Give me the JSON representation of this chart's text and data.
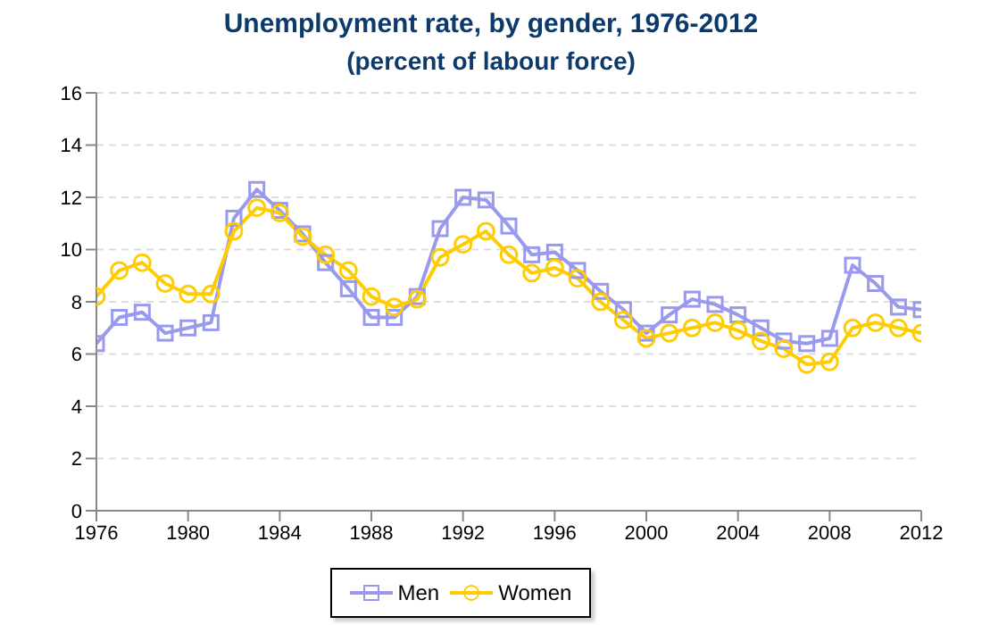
{
  "chart_data": {
    "type": "line",
    "title": "Unemployment rate, by gender, 1976-2012",
    "subtitle": "(percent of labour force)",
    "x": [
      1976,
      1977,
      1978,
      1979,
      1980,
      1981,
      1982,
      1983,
      1984,
      1985,
      1986,
      1987,
      1988,
      1989,
      1990,
      1991,
      1992,
      1993,
      1994,
      1995,
      1996,
      1997,
      1998,
      1999,
      2000,
      2001,
      2002,
      2003,
      2004,
      2005,
      2006,
      2007,
      2008,
      2009,
      2010,
      2011,
      2012
    ],
    "series": [
      {
        "name": "Men",
        "color": "#9999ee",
        "marker": "square",
        "values": [
          6.4,
          7.4,
          7.6,
          6.8,
          7.0,
          7.2,
          11.2,
          12.3,
          11.5,
          10.6,
          9.5,
          8.5,
          7.4,
          7.4,
          8.2,
          10.8,
          12.0,
          11.9,
          10.9,
          9.8,
          9.9,
          9.2,
          8.4,
          7.7,
          6.8,
          7.5,
          8.1,
          7.9,
          7.5,
          7.0,
          6.5,
          6.4,
          6.6,
          9.4,
          8.7,
          7.8,
          7.7
        ]
      },
      {
        "name": "Women",
        "color": "#ffcc00",
        "marker": "circle",
        "values": [
          8.2,
          9.2,
          9.5,
          8.7,
          8.3,
          8.3,
          10.7,
          11.6,
          11.4,
          10.5,
          9.8,
          9.2,
          8.2,
          7.8,
          8.1,
          9.7,
          10.2,
          10.7,
          9.8,
          9.1,
          9.3,
          8.9,
          8.0,
          7.3,
          6.6,
          6.8,
          7.0,
          7.2,
          6.9,
          6.5,
          6.2,
          5.6,
          5.7,
          7.0,
          7.2,
          7.0,
          6.8
        ]
      }
    ],
    "xlim": [
      1976,
      2012
    ],
    "xticks": [
      1976,
      1980,
      1984,
      1988,
      1992,
      1996,
      2000,
      2004,
      2008,
      2012
    ],
    "ylim": [
      0,
      16
    ],
    "yticks": [
      0,
      2,
      4,
      6,
      8,
      10,
      12,
      14,
      16
    ],
    "grid": "y",
    "legend": "bottom",
    "line_style": "solid"
  }
}
